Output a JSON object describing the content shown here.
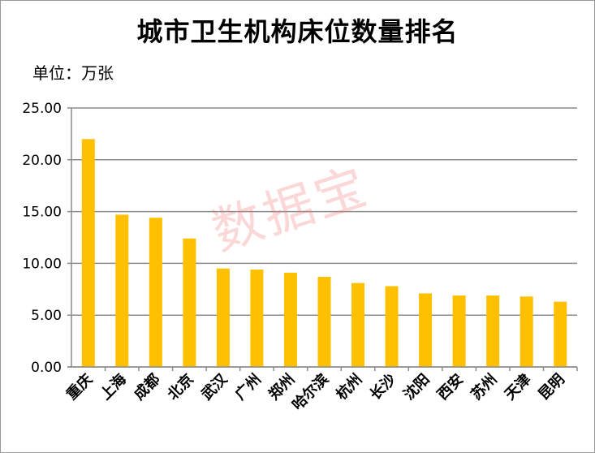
{
  "chart_data": {
    "type": "bar",
    "title": "城市卫生机构床位数量排名",
    "unit_label": "单位：万张",
    "categories": [
      "重庆",
      "上海",
      "成都",
      "北京",
      "武汉",
      "广州",
      "郑州",
      "哈尔滨",
      "杭州",
      "长沙",
      "沈阳",
      "西安",
      "苏州",
      "天津",
      "昆明"
    ],
    "values": [
      22.0,
      14.7,
      14.4,
      12.4,
      9.5,
      9.4,
      9.1,
      8.7,
      8.1,
      7.8,
      7.1,
      6.9,
      6.9,
      6.8,
      6.3
    ],
    "ylim": [
      0,
      25
    ],
    "yticks": [
      "0.00",
      "5.00",
      "10.00",
      "15.00",
      "20.00",
      "25.00"
    ],
    "grid": true,
    "bar_color": "#FFC000",
    "watermark": "数据宝"
  }
}
